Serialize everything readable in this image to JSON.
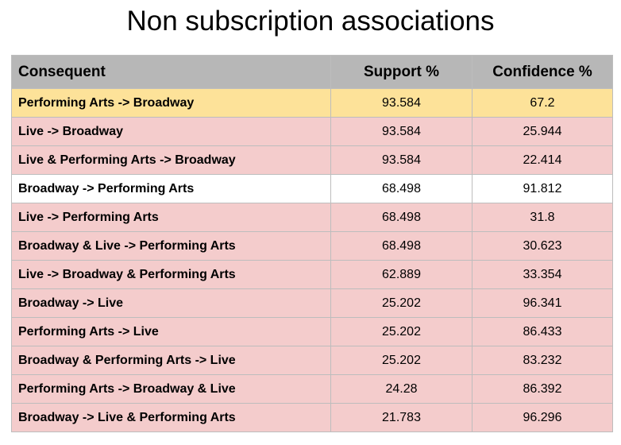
{
  "title": "Non subscription associations",
  "colors": {
    "header_bg": "#b7b7b7",
    "highlight": "#fde299",
    "pink": "#f4cccc",
    "white": "#ffffff",
    "grid": "#bdbdbd"
  },
  "chart_data": {
    "type": "table",
    "title": "Non subscription associations",
    "columns": [
      "Consequent",
      "Support %",
      "Confidence %"
    ],
    "rows": [
      {
        "rule": "Performing Arts -> Broadway",
        "support": "93.584",
        "confidence": "67.2",
        "fill": "highlight"
      },
      {
        "rule": "Live -> Broadway",
        "support": "93.584",
        "confidence": "25.944",
        "fill": "pink"
      },
      {
        "rule": "Live & Performing Arts -> Broadway",
        "support": "93.584",
        "confidence": "22.414",
        "fill": "pink"
      },
      {
        "rule": "Broadway -> Performing Arts",
        "support": "68.498",
        "confidence": "91.812",
        "fill": "white"
      },
      {
        "rule": "Live -> Performing Arts",
        "support": "68.498",
        "confidence": "31.8",
        "fill": "pink"
      },
      {
        "rule": "Broadway & Live -> Performing Arts",
        "support": "68.498",
        "confidence": "30.623",
        "fill": "pink"
      },
      {
        "rule": "Live -> Broadway & Performing Arts",
        "support": "62.889",
        "confidence": "33.354",
        "fill": "pink"
      },
      {
        "rule": "Broadway -> Live",
        "support": "25.202",
        "confidence": "96.341",
        "fill": "pink"
      },
      {
        "rule": "Performing Arts -> Live",
        "support": "25.202",
        "confidence": "86.433",
        "fill": "pink"
      },
      {
        "rule": "Broadway & Performing Arts -> Live",
        "support": "25.202",
        "confidence": "83.232",
        "fill": "pink"
      },
      {
        "rule": "Performing Arts -> Broadway & Live",
        "support": "24.28",
        "confidence": "86.392",
        "fill": "pink"
      },
      {
        "rule": "Broadway -> Live & Performing Arts",
        "support": "21.783",
        "confidence": "96.296",
        "fill": "pink"
      }
    ]
  }
}
